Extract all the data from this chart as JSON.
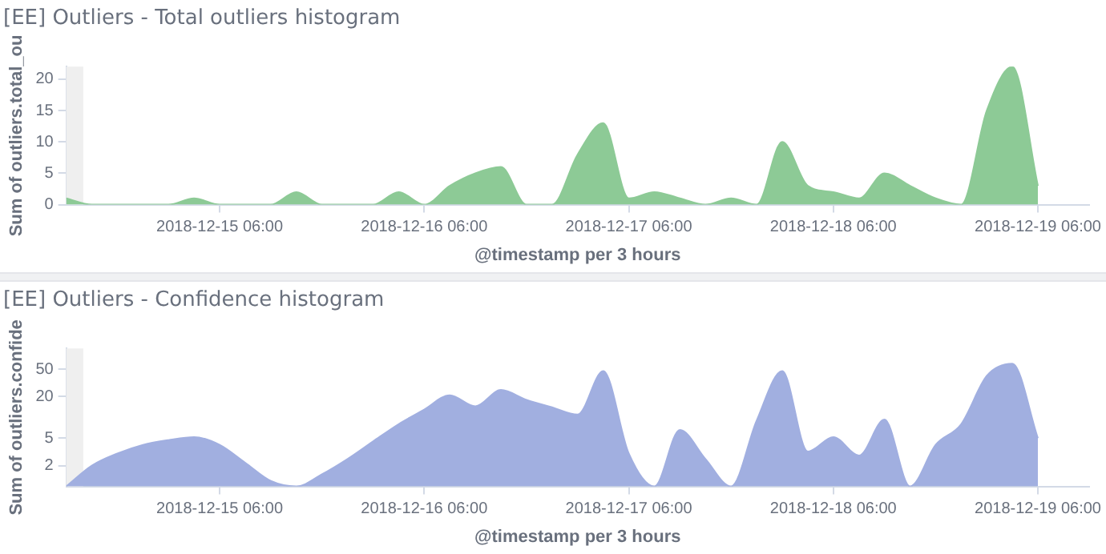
{
  "chart_data": [
    {
      "type": "area",
      "title": "[EE] Outliers - Total outliers histogram",
      "xlabel": "@timestamp per 3 hours",
      "ylabel": "Sum of outliers.total_ou",
      "x": [
        "2018-12-14T12:00",
        "2018-12-14T15:00",
        "2018-12-14T18:00",
        "2018-12-14T21:00",
        "2018-12-15T00:00",
        "2018-12-15T03:00",
        "2018-12-15T06:00",
        "2018-12-15T09:00",
        "2018-12-15T12:00",
        "2018-12-15T15:00",
        "2018-12-15T18:00",
        "2018-12-15T21:00",
        "2018-12-16T00:00",
        "2018-12-16T03:00",
        "2018-12-16T06:00",
        "2018-12-16T09:00",
        "2018-12-16T12:00",
        "2018-12-16T15:00",
        "2018-12-16T18:00",
        "2018-12-16T21:00",
        "2018-12-17T00:00",
        "2018-12-17T03:00",
        "2018-12-17T06:00",
        "2018-12-17T09:00",
        "2018-12-17T12:00",
        "2018-12-17T15:00",
        "2018-12-17T18:00",
        "2018-12-17T21:00",
        "2018-12-18T00:00",
        "2018-12-18T03:00",
        "2018-12-18T06:00",
        "2018-12-18T09:00",
        "2018-12-18T12:00",
        "2018-12-18T15:00",
        "2018-12-18T18:00",
        "2018-12-18T21:00",
        "2018-12-19T00:00",
        "2018-12-19T03:00",
        "2018-12-19T06:00"
      ],
      "series": [
        {
          "color": "#8dca96",
          "values": [
            1,
            0,
            0,
            0,
            0,
            1,
            0,
            0,
            0,
            2,
            0,
            0,
            0,
            2,
            0,
            3,
            5,
            6,
            0,
            0,
            8,
            13,
            1,
            2,
            1,
            0,
            1,
            0,
            10,
            3,
            2,
            1,
            5,
            3,
            1,
            0,
            15,
            22,
            3
          ]
        }
      ],
      "xlim": [
        "2018-12-14T12:00",
        "2018-12-19T12:00"
      ],
      "ylim": [
        0,
        22
      ],
      "xticks": [
        {
          "value": "2018-12-15T06:00",
          "label": "2018-12-15 06:00"
        },
        {
          "value": "2018-12-16T06:00",
          "label": "2018-12-16 06:00"
        },
        {
          "value": "2018-12-17T06:00",
          "label": "2018-12-17 06:00"
        },
        {
          "value": "2018-12-18T06:00",
          "label": "2018-12-18 06:00"
        },
        {
          "value": "2018-12-19T06:00",
          "label": "2018-12-19 06:00"
        }
      ],
      "yticks": [
        0,
        5,
        10,
        15,
        20
      ],
      "grid": false,
      "bands": [
        {
          "axis": "x",
          "from": "2018-12-14T12:00",
          "to": "2018-12-14T14:00",
          "color": "#efefef"
        }
      ]
    },
    {
      "type": "area",
      "title": "[EE] Outliers - Confidence histogram",
      "xlabel": "@timestamp per 3 hours",
      "ylabel": "Sum of outliers.confide",
      "log": true,
      "x": [
        "2018-12-14T12:00",
        "2018-12-14T15:00",
        "2018-12-14T18:00",
        "2018-12-14T21:00",
        "2018-12-15T00:00",
        "2018-12-15T03:00",
        "2018-12-15T06:00",
        "2018-12-15T09:00",
        "2018-12-15T12:00",
        "2018-12-15T15:00",
        "2018-12-15T18:00",
        "2018-12-15T21:00",
        "2018-12-16T00:00",
        "2018-12-16T03:00",
        "2018-12-16T06:00",
        "2018-12-16T09:00",
        "2018-12-16T12:00",
        "2018-12-16T15:00",
        "2018-12-16T18:00",
        "2018-12-16T21:00",
        "2018-12-17T00:00",
        "2018-12-17T03:00",
        "2018-12-17T06:00",
        "2018-12-17T09:00",
        "2018-12-17T12:00",
        "2018-12-17T15:00",
        "2018-12-17T18:00",
        "2018-12-17T21:00",
        "2018-12-18T00:00",
        "2018-12-18T03:00",
        "2018-12-18T06:00",
        "2018-12-18T09:00",
        "2018-12-18T12:00",
        "2018-12-18T15:00",
        "2018-12-18T18:00",
        "2018-12-18T21:00",
        "2018-12-19T00:00",
        "2018-12-19T03:00",
        "2018-12-19T06:00"
      ],
      "series": [
        {
          "color": "#a1afe0",
          "values": [
            1,
            2,
            3,
            4,
            4.7,
            5.2,
            4,
            2.2,
            1.2,
            1,
            1.5,
            2.5,
            4.5,
            8,
            13,
            21,
            14.5,
            25,
            18,
            14,
            11,
            47,
            3,
            1,
            6.6,
            2.5,
            1,
            9,
            47,
            3.2,
            5.2,
            2.8,
            9.3,
            1,
            4,
            8,
            40,
            60,
            5
          ]
        }
      ],
      "xlim": [
        "2018-12-14T12:00",
        "2018-12-19T12:00"
      ],
      "ylim": [
        1,
        100
      ],
      "xticks": [
        {
          "value": "2018-12-15T06:00",
          "label": "2018-12-15 06:00"
        },
        {
          "value": "2018-12-16T06:00",
          "label": "2018-12-16 06:00"
        },
        {
          "value": "2018-12-17T06:00",
          "label": "2018-12-17 06:00"
        },
        {
          "value": "2018-12-18T06:00",
          "label": "2018-12-18 06:00"
        },
        {
          "value": "2018-12-19T06:00",
          "label": "2018-12-19 06:00"
        }
      ],
      "yticks": [
        2,
        5,
        20,
        50
      ],
      "grid": false,
      "bands": [
        {
          "axis": "x",
          "from": "2018-12-14T12:00",
          "to": "2018-12-14T14:00",
          "color": "#efefef"
        }
      ]
    }
  ]
}
